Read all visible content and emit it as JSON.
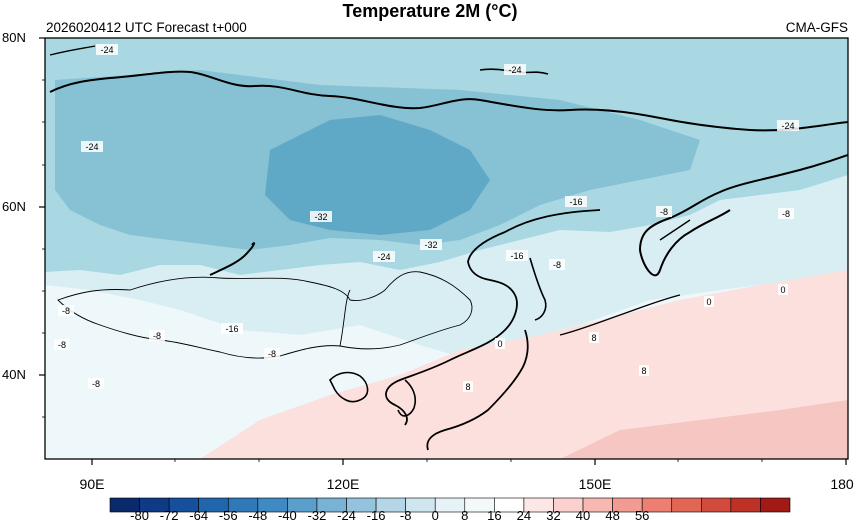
{
  "header": {
    "title": "Temperature  2M (°C)",
    "run_label": "2026020412 UTC Forecast t+000",
    "model": "CMA-GFS"
  },
  "axes": {
    "y_labels": [
      "80N",
      "60N",
      "40N"
    ],
    "x_labels": [
      "90E",
      "120E",
      "150E",
      "180"
    ]
  },
  "contour_labels": [
    "-24",
    "-24",
    "-24",
    "-24",
    "-16",
    "-8",
    "-8",
    "-32",
    "-32",
    "-24",
    "-16",
    "-8",
    "-8",
    "-16",
    "-8",
    "-8",
    "-8",
    "-8",
    "0",
    "0",
    "0",
    "8",
    "8",
    "8"
  ],
  "colorbar": {
    "labels": [
      "-80",
      "-72",
      "-64",
      "-56",
      "-48",
      "-40",
      "-32",
      "-24",
      "-16",
      "-8",
      "0",
      "8",
      "16",
      "24",
      "32",
      "40",
      "48",
      "56"
    ],
    "colors": [
      "#0b2a6b",
      "#0f3a85",
      "#16509d",
      "#2166ac",
      "#2f79b8",
      "#3f8ac2",
      "#5a9fcc",
      "#78b2d5",
      "#94c4dd",
      "#b4d6e6",
      "#cfe6ee",
      "#e6f2f5",
      "#f3f9fa",
      "#ffffff",
      "#fde7e6",
      "#fbd1cf",
      "#f7b8b2",
      "#f29b92",
      "#ec7e72",
      "#e26655",
      "#d24a3c",
      "#bd3127",
      "#a11a16"
    ]
  }
}
